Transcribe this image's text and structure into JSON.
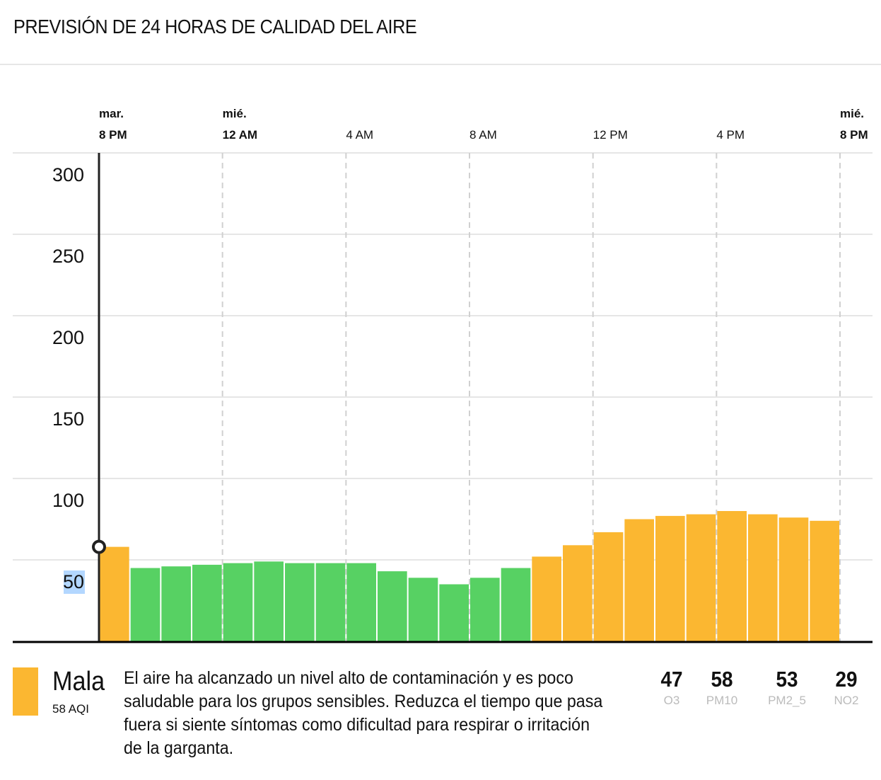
{
  "title": "PREVISIÓN DE 24 HORAS DE CALIDAD DEL AIRE",
  "colors": {
    "good": "#57d163",
    "moderate": "#fbb731",
    "cursor": "#222222",
    "highlight": "#b3d7ff"
  },
  "chart_data": {
    "type": "bar",
    "ylim": [
      0,
      300
    ],
    "yticks": [
      "300",
      "250",
      "200",
      "150",
      "100",
      "50"
    ],
    "xticks": [
      {
        "day": "mar.",
        "time": "8 PM",
        "bold": true
      },
      {
        "day": "mié.",
        "time": "12 AM",
        "bold": true
      },
      {
        "day": "",
        "time": "4 AM",
        "bold": false
      },
      {
        "day": "",
        "time": "8 AM",
        "bold": false
      },
      {
        "day": "",
        "time": "12 PM",
        "bold": false
      },
      {
        "day": "",
        "time": "4 PM",
        "bold": false
      },
      {
        "day": "mié.",
        "time": "8 PM",
        "bold": true
      }
    ],
    "values": [
      58,
      45,
      46,
      47,
      48,
      49,
      48,
      48,
      48,
      43,
      39,
      35,
      39,
      45,
      52,
      59,
      67,
      75,
      77,
      78,
      80,
      78,
      76,
      74
    ],
    "threshold_good": 50,
    "selected_index": 0,
    "grid": true
  },
  "summary": {
    "category": "Mala",
    "aqi": "58 AQI",
    "description": "El aire ha alcanzado un nivel alto de contaminación y es poco saludable para los grupos sensibles. Reduzca el tiempo que pasa fuera si siente síntomas como dificultad para respirar o irritación de la garganta.",
    "pollutants": [
      {
        "value": "47",
        "name": "O3"
      },
      {
        "value": "58",
        "name": "PM10"
      },
      {
        "value": "53",
        "name": "PM2_5"
      },
      {
        "value": "29",
        "name": "NO2"
      }
    ]
  }
}
